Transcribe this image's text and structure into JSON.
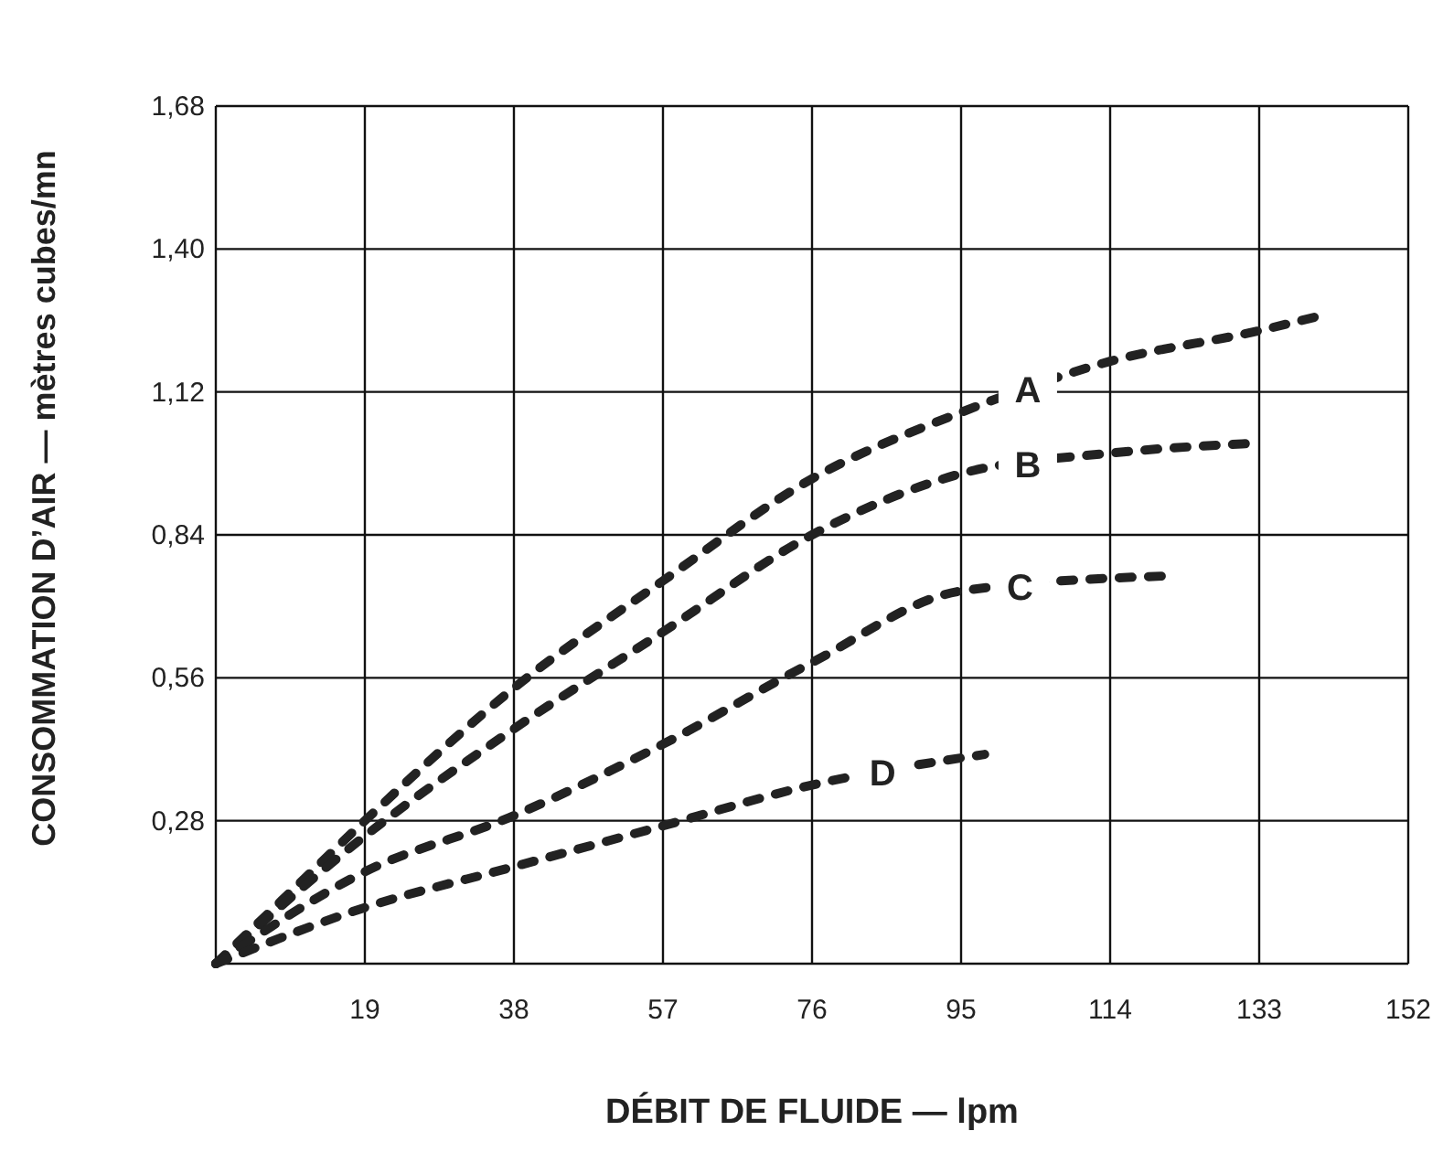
{
  "chart_data": {
    "type": "line",
    "xlabel": "DÉBIT DE FLUIDE — lpm",
    "ylabel": "CONSOMMATION D’AIR — mètres cubes/mn",
    "xlim": [
      0,
      152
    ],
    "xticks": [
      19,
      38,
      57,
      76,
      95,
      114,
      133,
      152
    ],
    "ylim": [
      0,
      1.68
    ],
    "yticks": [
      {
        "value": 0.28,
        "label": "0,28"
      },
      {
        "value": 0.56,
        "label": "0,56"
      },
      {
        "value": 0.84,
        "label": "0,84"
      },
      {
        "value": 1.12,
        "label": "1,12"
      },
      {
        "value": 1.4,
        "label": "1,40"
      },
      {
        "value": 1.68,
        "label": "1,68"
      }
    ],
    "grid": true,
    "line_style": "dashed",
    "marker": "none",
    "series": [
      {
        "name": "A",
        "color": "#222222",
        "x": [
          0,
          9.5,
          19,
          38,
          57,
          76,
          95,
          114,
          133,
          141
        ],
        "values": [
          0,
          0.14,
          0.28,
          0.54,
          0.75,
          0.95,
          1.08,
          1.18,
          1.24,
          1.27
        ]
      },
      {
        "name": "B",
        "color": "#222222",
        "x": [
          0,
          19,
          38,
          57,
          76,
          95,
          114,
          133
        ],
        "values": [
          0,
          0.25,
          0.46,
          0.65,
          0.84,
          0.96,
          1.0,
          1.02
        ]
      },
      {
        "name": "C",
        "color": "#222222",
        "x": [
          0,
          19,
          38,
          57,
          76,
          95,
          122
        ],
        "values": [
          0,
          0.18,
          0.29,
          0.43,
          0.59,
          0.73,
          0.76
        ]
      },
      {
        "name": "D",
        "color": "#222222",
        "x": [
          0,
          19,
          38,
          57,
          76,
          98
        ],
        "values": [
          0,
          0.11,
          0.19,
          0.27,
          0.35,
          0.41
        ]
      }
    ]
  }
}
